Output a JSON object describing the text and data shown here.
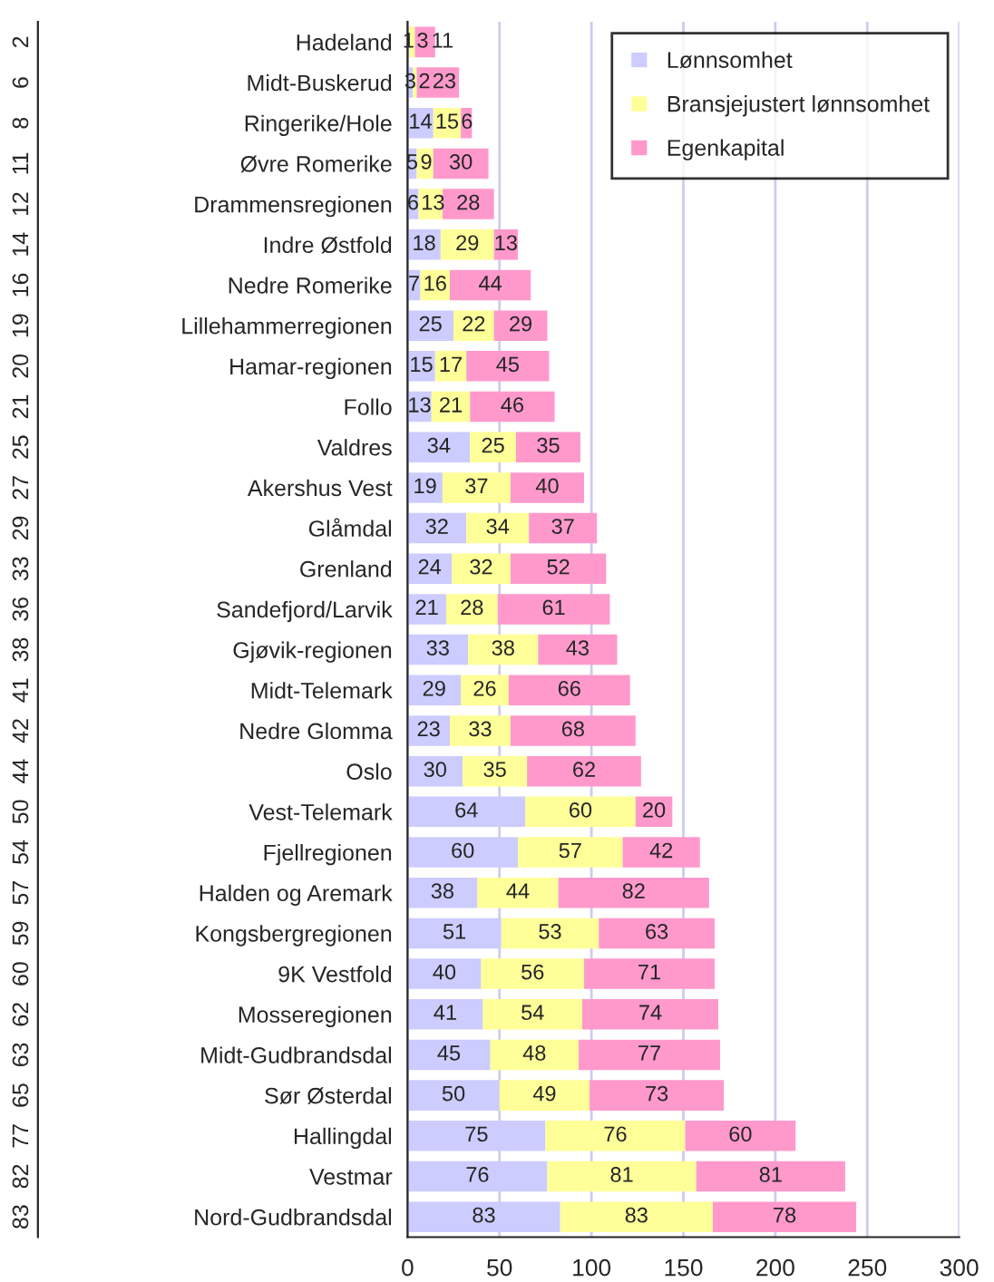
{
  "chart_data": {
    "type": "bar",
    "orientation": "horizontal",
    "stacked": true,
    "categories": [
      "Hadeland",
      "Midt-Buskerud",
      "Ringerike/Hole",
      "Øvre Romerike",
      "Drammensregionen",
      "Indre Østfold",
      "Nedre Romerike",
      "Lillehammerregionen",
      "Hamar-regionen",
      "Follo",
      "Valdres",
      "Akershus Vest",
      "Glåmdal",
      "Grenland",
      "Sandefjord/Larvik",
      "Gjøvik-regionen",
      "Midt-Telemark",
      "Nedre Glomma",
      "Oslo",
      "Vest-Telemark",
      "Fjellregionen",
      "Halden og Aremark",
      "Kongsbergregionen",
      "9K Vestfold",
      "Mosseregionen",
      "Midt-Gudbrandsdal",
      "Sør Østerdal",
      "Hallingdal",
      "Vestmar",
      "Nord-Gudbrandsdal"
    ],
    "y2_categories": [
      "2",
      "6",
      "8",
      "11",
      "12",
      "14",
      "16",
      "19",
      "20",
      "21",
      "25",
      "27",
      "29",
      "33",
      "36",
      "38",
      "41",
      "42",
      "44",
      "50",
      "54",
      "57",
      "59",
      "60",
      "62",
      "63",
      "65",
      "77",
      "82",
      "83"
    ],
    "series": [
      {
        "name": "Lønnsomhet",
        "color": "#ccccff",
        "values": [
          1,
          3,
          14,
          5,
          6,
          18,
          7,
          25,
          15,
          13,
          34,
          19,
          32,
          24,
          21,
          33,
          29,
          23,
          30,
          64,
          60,
          38,
          51,
          40,
          41,
          45,
          50,
          75,
          76,
          83
        ]
      },
      {
        "name": "Bransjejustert lønnsomhet",
        "color": "#ffff99",
        "values": [
          3,
          2,
          15,
          9,
          13,
          29,
          16,
          22,
          17,
          21,
          25,
          37,
          34,
          32,
          28,
          38,
          26,
          33,
          35,
          60,
          57,
          44,
          53,
          56,
          54,
          48,
          49,
          76,
          81,
          83
        ]
      },
      {
        "name": "Egenkapital",
        "color": "#ff99cc",
        "values": [
          11,
          23,
          6,
          30,
          28,
          13,
          44,
          29,
          45,
          46,
          35,
          40,
          37,
          52,
          61,
          43,
          66,
          68,
          62,
          20,
          42,
          82,
          63,
          71,
          74,
          77,
          73,
          60,
          81,
          78
        ]
      }
    ],
    "xlim": [
      0,
      300
    ],
    "xticks": [
      0,
      50,
      100,
      150,
      200,
      250,
      300
    ],
    "grid": "x",
    "legend": "top right",
    "data_labels": true
  }
}
